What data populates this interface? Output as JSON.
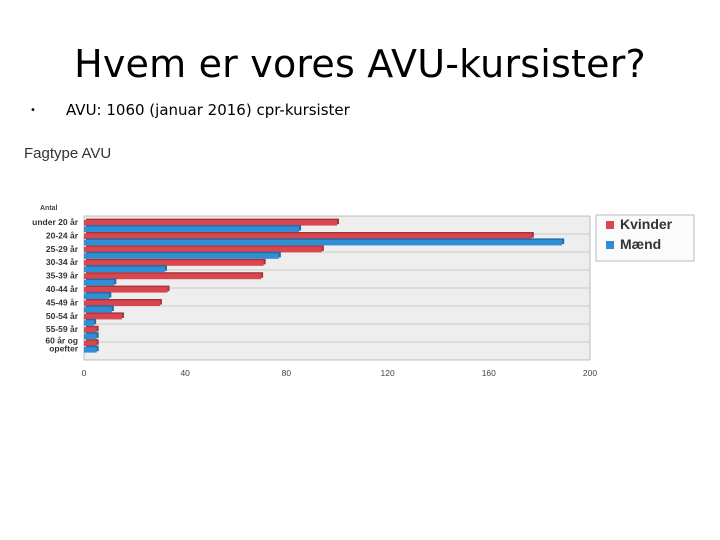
{
  "slide": {
    "title": "Hvem er vores AVU-kursister?",
    "bullet_symbol": "•",
    "bullet_text": "AVU: 1060 (januar 2016) cpr-kursister"
  },
  "colors": {
    "kvinder": "#d9464f",
    "maend": "#2f8fd6",
    "plot_bg": "#eeeeee",
    "grid": "#b8b8b8"
  },
  "chart_data": {
    "type": "bar",
    "orientation": "horizontal",
    "title": "Fagtype AVU",
    "axis_title": "Antal",
    "categories": [
      "under 20 år",
      "20-24 år",
      "25-29 år",
      "30-34 år",
      "35-39 år",
      "40-44 år",
      "45-49 år",
      "50-54 år",
      "55-59 år",
      "60 år og opefter"
    ],
    "category_lines": [
      [
        "under 20 år"
      ],
      [
        "20-24 år"
      ],
      [
        "25-29 år"
      ],
      [
        "30-34 år"
      ],
      [
        "35-39 år"
      ],
      [
        "40-44 år"
      ],
      [
        "45-49 år"
      ],
      [
        "50-54 år"
      ],
      [
        "55-59 år"
      ],
      [
        "60 år og",
        "opefter"
      ]
    ],
    "series": [
      {
        "name": "Kvinder",
        "color": "#d9464f",
        "values": [
          100,
          177,
          94,
          71,
          70,
          33,
          30,
          15,
          5,
          5
        ]
      },
      {
        "name": "Mænd",
        "color": "#2f8fd6",
        "values": [
          85,
          189,
          77,
          32,
          12,
          10,
          11,
          4,
          5,
          5
        ]
      }
    ],
    "xlim": [
      0,
      200
    ],
    "xticks": [
      "0",
      "40",
      "80",
      "120",
      "160",
      "200"
    ],
    "grid": true,
    "legend_position": "right"
  }
}
